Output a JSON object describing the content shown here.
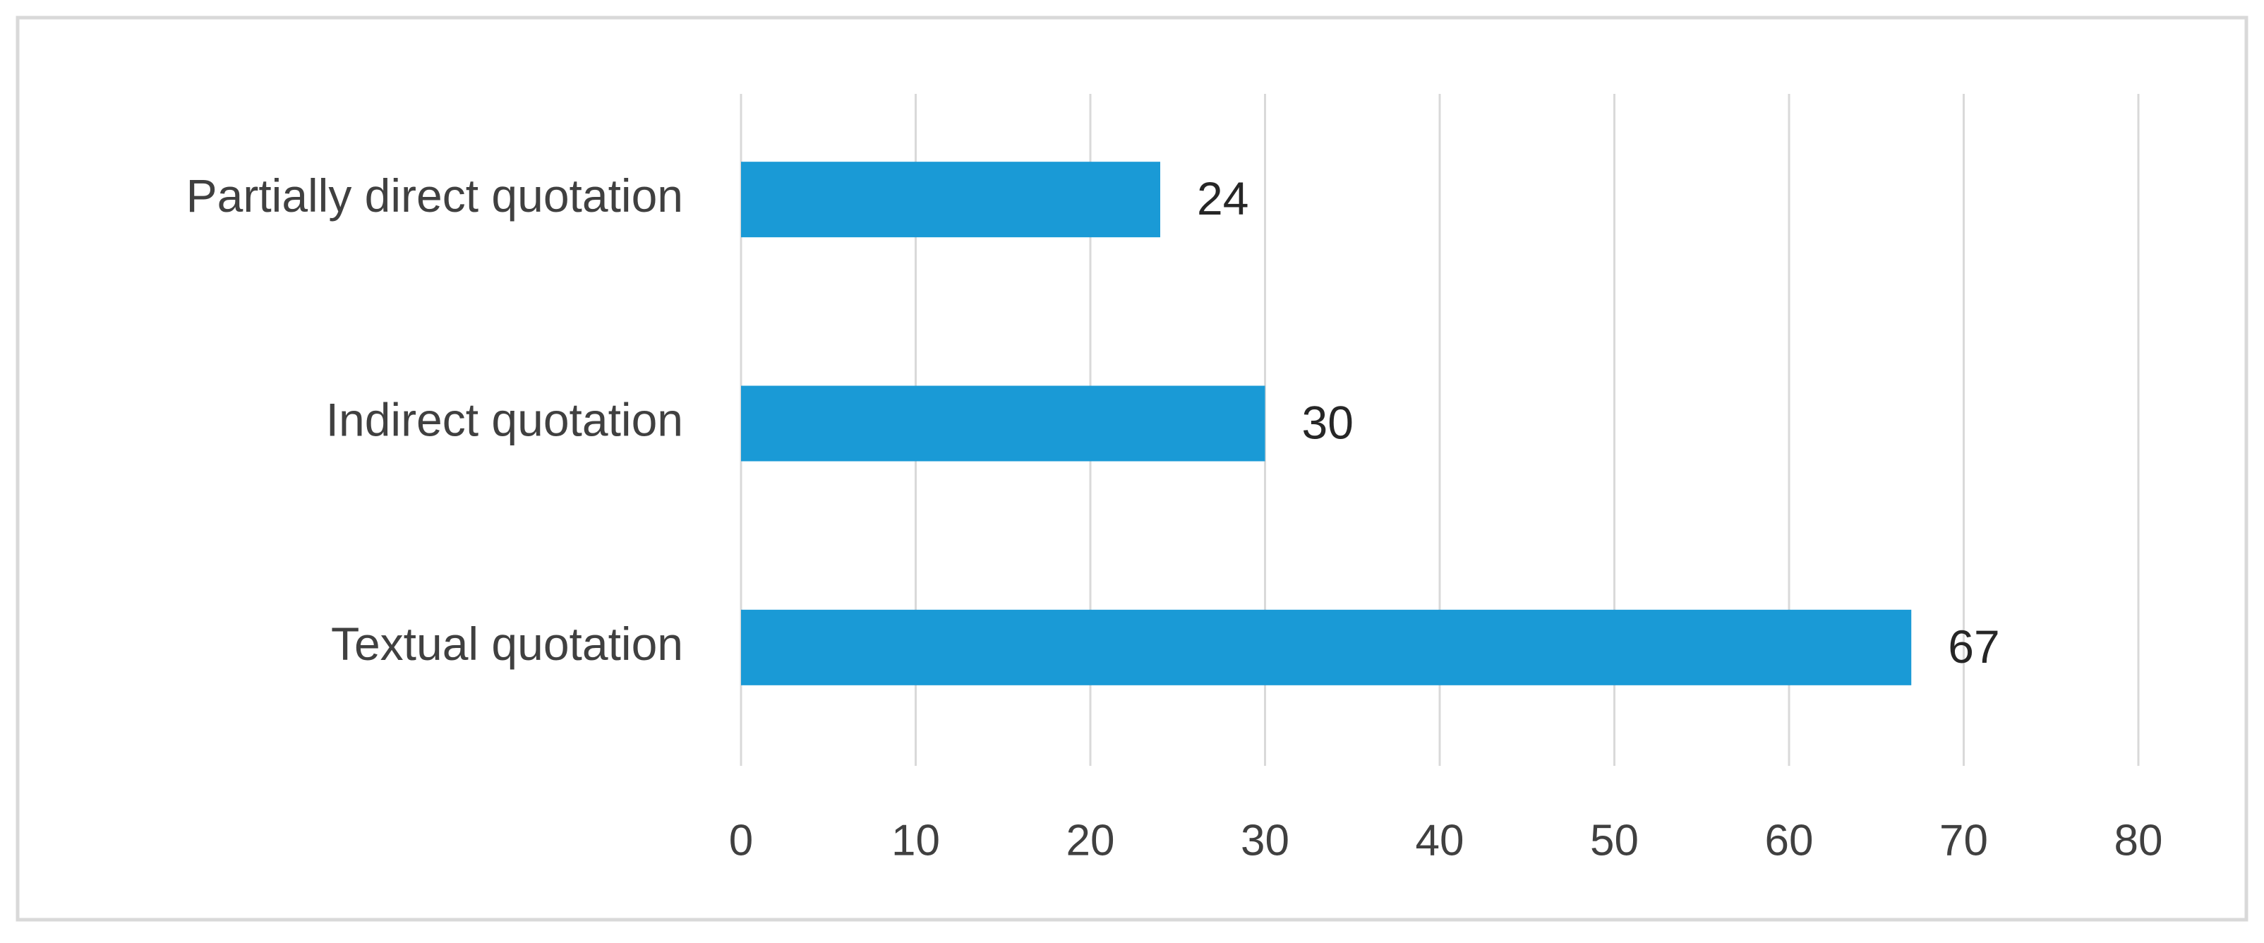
{
  "chart_data": {
    "type": "bar",
    "orientation": "horizontal",
    "categories": [
      "Partially direct quotation",
      "Indirect quotation",
      "Textual quotation"
    ],
    "values": [
      24,
      30,
      67
    ],
    "color": "#1a9ad6",
    "xlim": [
      0,
      80
    ],
    "xticks": [
      0,
      10,
      20,
      30,
      40,
      50,
      60,
      70,
      80
    ],
    "grid": true,
    "data_labels": true
  }
}
